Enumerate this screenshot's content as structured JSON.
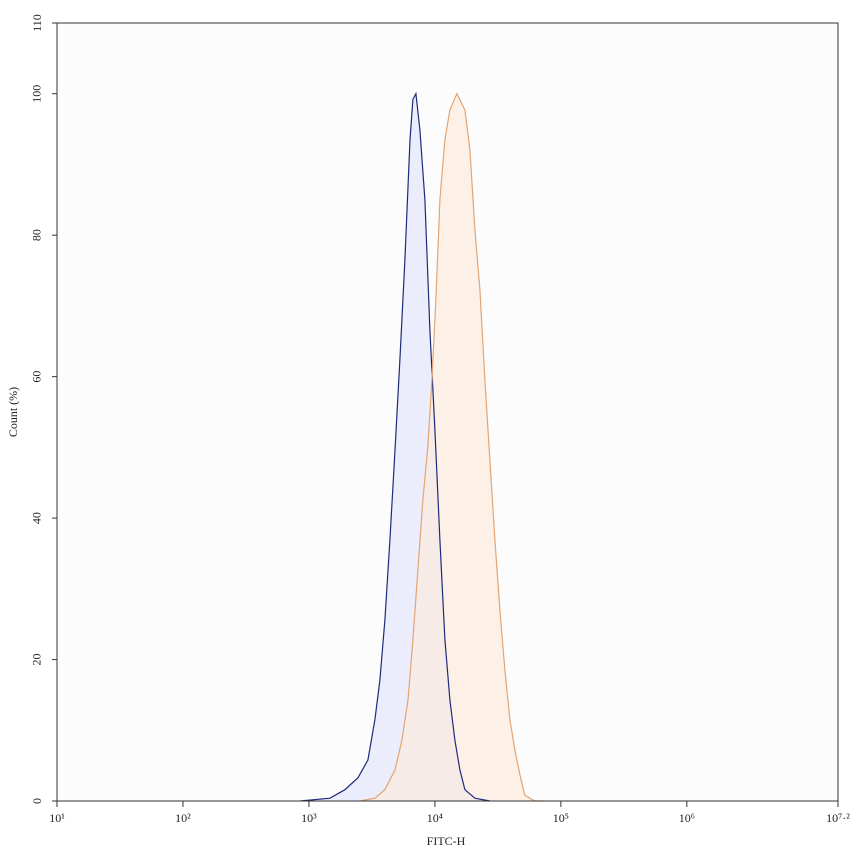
{
  "chart_data": {
    "type": "histogram-overlay",
    "xlabel": "FITC-H",
    "ylabel": "Count (%)",
    "xscale": "log",
    "xlim": [
      10,
      15848932
    ],
    "ylim": [
      0,
      110
    ],
    "xticks": [
      {
        "value": 10,
        "label": "10¹"
      },
      {
        "value": 100,
        "label": "10²"
      },
      {
        "value": 1000,
        "label": "10³"
      },
      {
        "value": 10000,
        "label": "10⁴"
      },
      {
        "value": 100000,
        "label": "10⁵"
      },
      {
        "value": 1000000,
        "label": "10⁶"
      },
      {
        "value": 15848932,
        "label": "10⁷·²"
      }
    ],
    "yticks": [
      0,
      20,
      40,
      60,
      80,
      100,
      110
    ],
    "series": [
      {
        "color": "#1f2a7a",
        "fill": "#dfe2fb",
        "x": [
          850,
          1470,
          1930,
          2450,
          2940,
          3340,
          3660,
          4010,
          4390,
          4820,
          5270,
          5780,
          6340,
          6690,
          7060,
          7600,
          8330,
          9130,
          10000,
          10960,
          12000,
          13150,
          14420,
          15790,
          17310,
          20770,
          27340
        ],
        "values": [
          0,
          0.4,
          1.6,
          3.3,
          5.8,
          11.5,
          17.1,
          25.6,
          36.9,
          49.6,
          62.4,
          76.5,
          93.5,
          99.2,
          100,
          94.9,
          85,
          66.6,
          52.5,
          36.9,
          22.8,
          14.3,
          8.6,
          4.4,
          1.6,
          0.4,
          0
        ]
      },
      {
        "color": "#e3a472",
        "fill": "#fde9d8",
        "x": [
          2540,
          3340,
          4010,
          4820,
          5470,
          6110,
          6690,
          7330,
          8030,
          8790,
          9460,
          10180,
          10960,
          12000,
          13150,
          14960,
          17310,
          18970,
          20770,
          22760,
          24940,
          27340,
          29940,
          32810,
          35960,
          39360,
          43150,
          47290,
          51760,
          62230,
          74650
        ],
        "values": [
          0,
          0.4,
          1.6,
          4.4,
          8.6,
          14.3,
          22.8,
          32.7,
          42.6,
          50.1,
          59.5,
          70.9,
          85,
          93.5,
          97.7,
          100,
          97.7,
          92.1,
          80.8,
          72.3,
          59.5,
          48.2,
          36.9,
          27,
          18.5,
          11.5,
          7.2,
          3.7,
          0.8,
          0,
          0
        ]
      }
    ]
  }
}
